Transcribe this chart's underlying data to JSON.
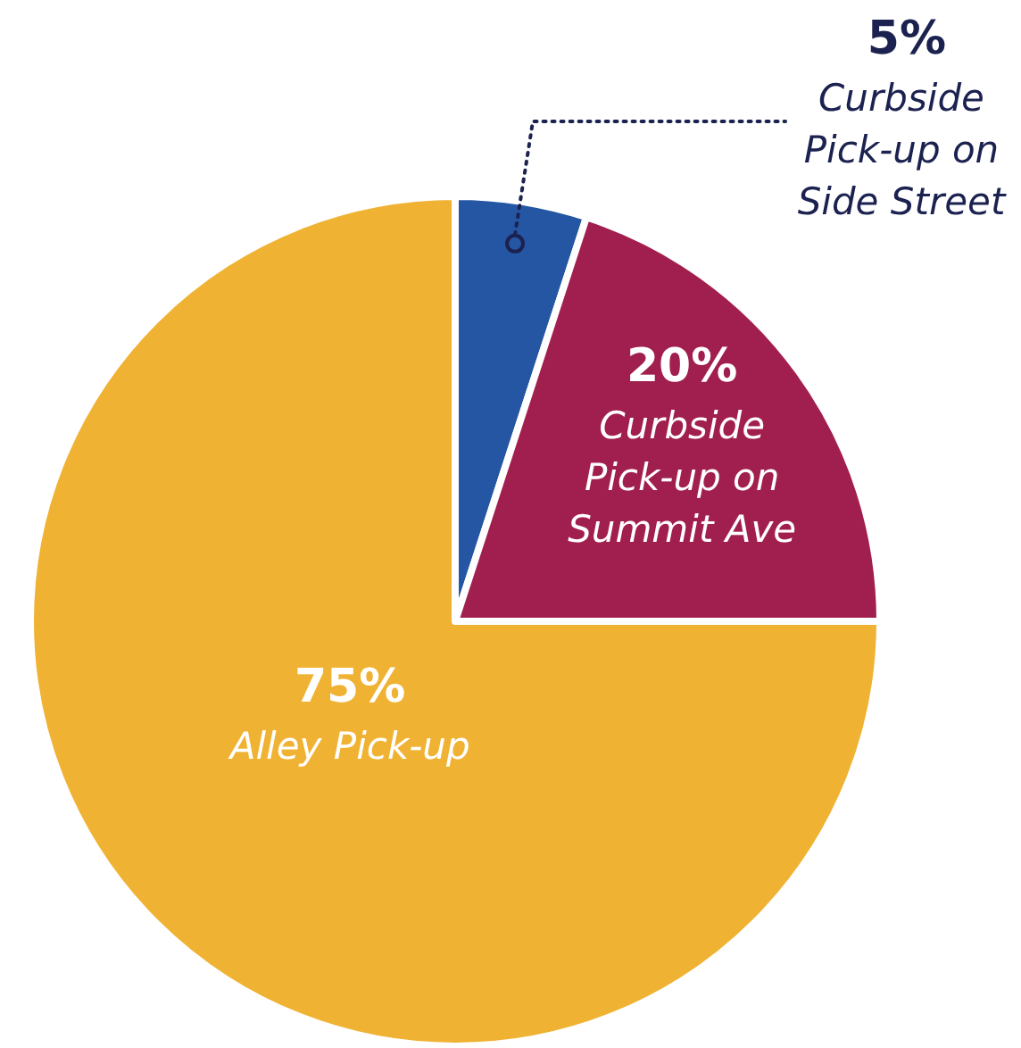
{
  "chart_data": {
    "type": "pie",
    "categories": [
      "Curbside Pick-up on Side Street",
      "Curbside Pick-up on Summit Ave",
      "Alley Pick-up"
    ],
    "values": [
      5,
      20,
      75
    ],
    "colors": [
      "#2456a4",
      "#a11f4e",
      "#f0b232"
    ],
    "value_labels": [
      "5%",
      "20%",
      "75%"
    ]
  }
}
